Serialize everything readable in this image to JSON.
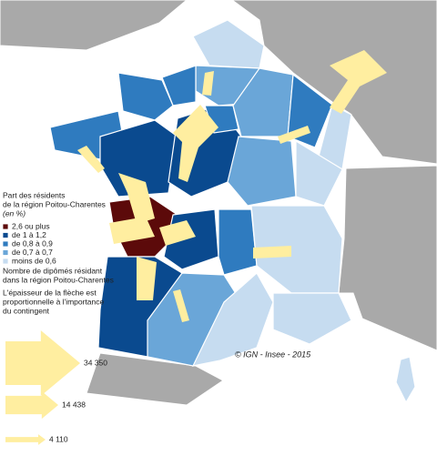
{
  "legend": {
    "title": [
      "Part des résidents",
      "de la région Poitou-Charentes",
      "(en %)"
    ],
    "classes": [
      {
        "label": "2,6 ou plus",
        "color": "#5c0a0a"
      },
      {
        "label": "de 1 à 1,2",
        "color": "#0a4a8f"
      },
      {
        "label": "de 0,8 à 0,9",
        "color": "#2f7bbf"
      },
      {
        "label": "de 0,7 à 0,7",
        "color": "#6aa6d8"
      },
      {
        "label": "moins de 0,6",
        "color": "#c6dcf0"
      }
    ],
    "flow_title": [
      "Nombre de dipômés résidant",
      "dans la région Poitou-Charentes"
    ],
    "flow_note": [
      "L'épaisseur de la flèche est",
      "proportionnelle à l'importance",
      "du contingent"
    ],
    "arrows": [
      {
        "value": 34350,
        "label": "34 350"
      },
      {
        "value": 14438,
        "label": "14 438"
      },
      {
        "value": 4110,
        "label": "4 110"
      }
    ]
  },
  "credit": "© IGN - Insee - 2015"
}
